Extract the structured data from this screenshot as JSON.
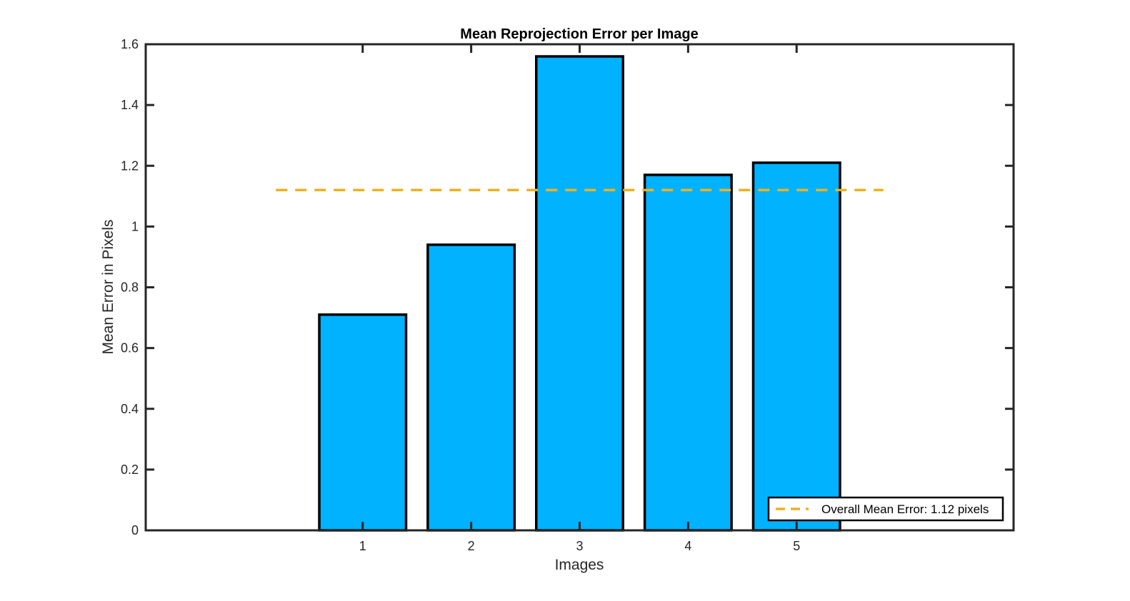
{
  "chart_data": {
    "type": "bar",
    "title": "Mean Reprojection Error per Image",
    "xlabel": "Images",
    "ylabel": "Mean Error in Pixels",
    "categories": [
      "1",
      "2",
      "3",
      "4",
      "5"
    ],
    "values": [
      0.71,
      0.94,
      1.56,
      1.17,
      1.21
    ],
    "xlim": [
      -1,
      7
    ],
    "ylim": [
      0,
      1.6
    ],
    "yticks": [
      0,
      0.2,
      0.4,
      0.6,
      0.8,
      1,
      1.2,
      1.4,
      1.6
    ],
    "ytick_labels": [
      "0",
      "0.2",
      "0.4",
      "0.6",
      "0.8",
      "1",
      "1.2",
      "1.4",
      "1.6"
    ],
    "bar_color": "#00b2ff",
    "bar_edge_color": "#000000",
    "reference_line": {
      "label": "Overall Mean Error: 1.12 pixels",
      "value": 1.12,
      "x_range": [
        0.2,
        5.8
      ],
      "style": "dashed",
      "color": "#edb120"
    },
    "grid": false,
    "legend_position": "bottom-right"
  }
}
